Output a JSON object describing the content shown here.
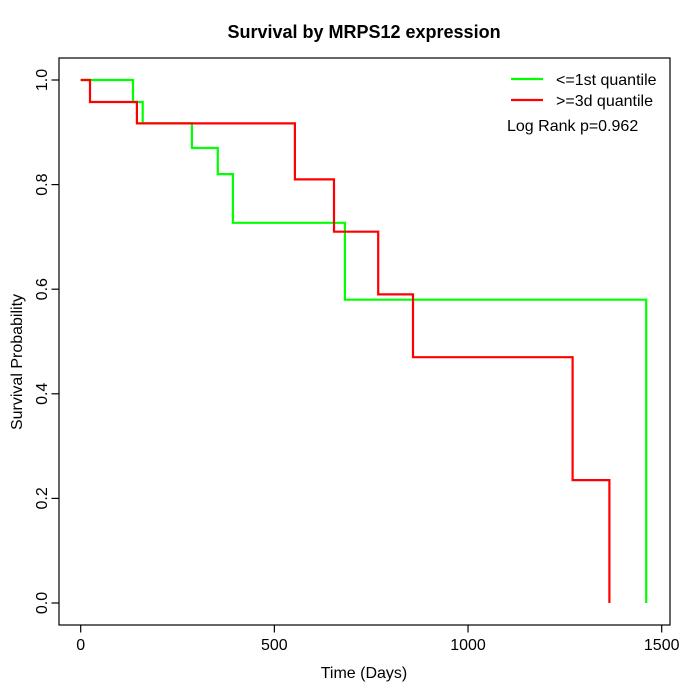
{
  "chart_data": {
    "type": "line",
    "variant": "kaplan_meier_step",
    "title": "Survival by MRPS12 expression",
    "xlabel": "Time (Days)",
    "ylabel": "Survival Probability",
    "xlim": [
      0,
      1500
    ],
    "ylim": [
      0.0,
      1.0
    ],
    "x_ticks": [
      0,
      500,
      1000,
      1500
    ],
    "y_ticks": [
      0.0,
      0.2,
      0.4,
      0.6,
      0.8,
      1.0
    ],
    "y_tick_labels": [
      "0.0",
      "0.2",
      "0.4",
      "0.6",
      "0.8",
      "1.0"
    ],
    "grid": false,
    "legend_position": "top-right",
    "annotation": "Log Rank p=0.962",
    "axis_color": "#000000",
    "text_color": "#000000",
    "background_color": "#ffffff",
    "series": [
      {
        "name": "<=1st quantile",
        "color": "#00ff00",
        "points": [
          [
            0,
            1.0
          ],
          [
            135,
            0.958
          ],
          [
            160,
            0.917
          ],
          [
            287,
            0.87
          ],
          [
            354,
            0.82
          ],
          [
            393,
            0.727
          ],
          [
            682,
            0.58
          ],
          [
            1460,
            0.0
          ]
        ]
      },
      {
        "name": ">=3d quantile",
        "color": "#ff0000",
        "points": [
          [
            0,
            1.0
          ],
          [
            24,
            0.958
          ],
          [
            145,
            0.917
          ],
          [
            553,
            0.81
          ],
          [
            654,
            0.71
          ],
          [
            768,
            0.59
          ],
          [
            858,
            0.47
          ],
          [
            1270,
            0.235
          ],
          [
            1365,
            0.0
          ]
        ]
      }
    ]
  }
}
